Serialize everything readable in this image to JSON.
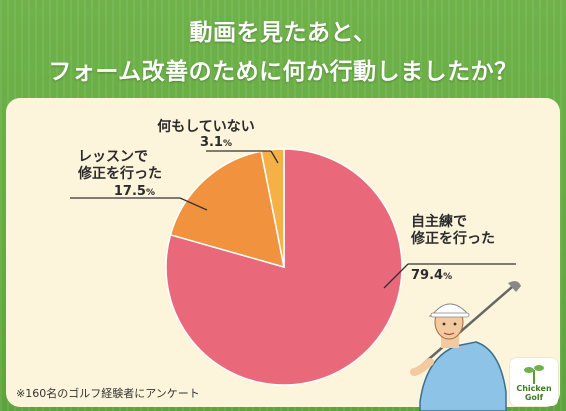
{
  "title_line1": "動画を見たあと、",
  "title_line2": "フォーム改善のために何か行動しましたか？",
  "chart_data": {
    "type": "pie",
    "slices": [
      {
        "label_lines": [
          "自主練で",
          "修正を行った"
        ],
        "value": 79.4,
        "value_text": "79.4",
        "color": "#e9697a"
      },
      {
        "label_lines": [
          "レッスンで",
          "修正を行った"
        ],
        "value": 17.5,
        "value_text": "17.5",
        "color": "#f0923e"
      },
      {
        "label_lines": [
          "何もしていない"
        ],
        "value": 3.1,
        "value_text": "3.1",
        "color": "#f6b146"
      }
    ],
    "unit": "%"
  },
  "note": "※160名のゴルフ経験者にアンケート",
  "logo": {
    "line1": "Chicken",
    "line2": "Golf"
  }
}
